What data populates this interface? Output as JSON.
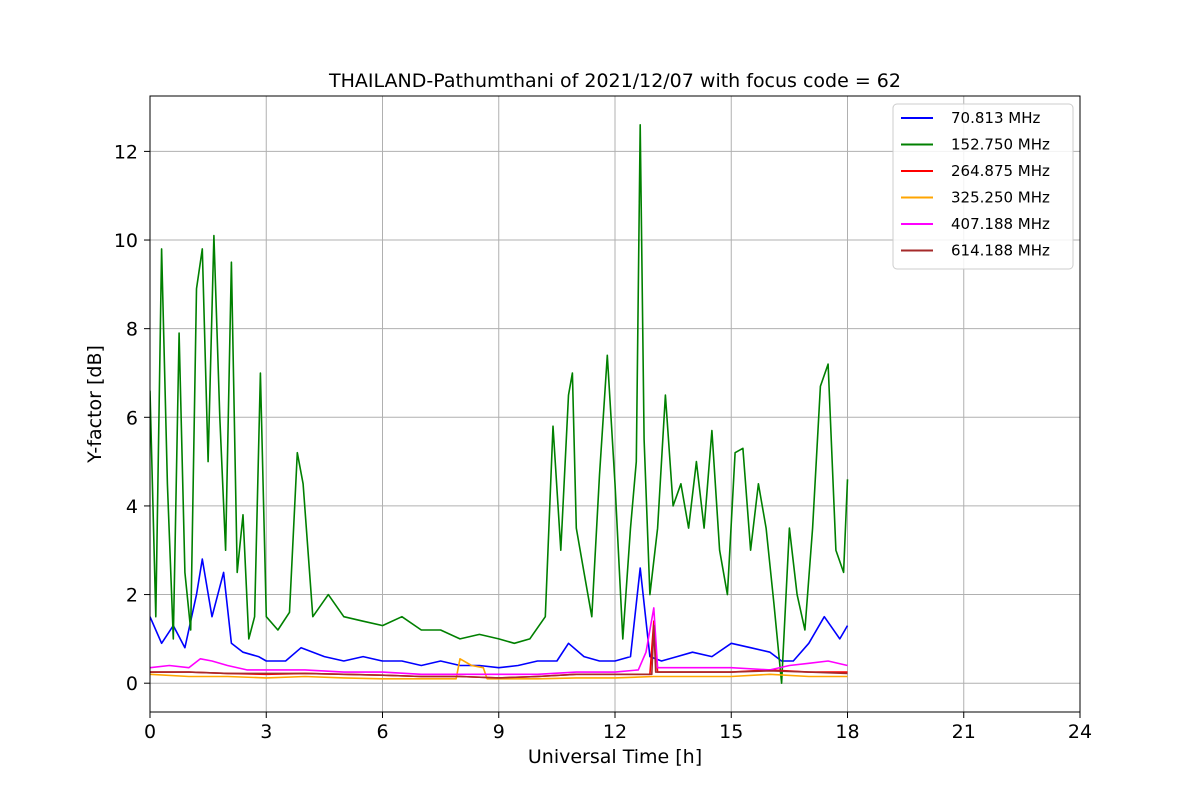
{
  "chart_data": {
    "type": "line",
    "title": "THAILAND-Pathumthani of 2021/12/07 with focus code = 62",
    "xlabel": "Universal Time [h]",
    "ylabel": "Y-factor [dB]",
    "xlim": [
      0,
      24
    ],
    "ylim": [
      -0.65,
      13.25
    ],
    "xticks": [
      0,
      3,
      6,
      9,
      12,
      15,
      18,
      21,
      24
    ],
    "yticks": [
      0,
      2,
      4,
      6,
      8,
      10,
      12
    ],
    "grid": true,
    "legend_position": "top-right",
    "series": [
      {
        "name": " 70.813 MHz",
        "color": "#0000ff",
        "x": [
          0,
          0.3,
          0.6,
          0.9,
          1.2,
          1.35,
          1.6,
          1.9,
          2.1,
          2.4,
          2.8,
          3.0,
          3.5,
          3.9,
          4.5,
          5.0,
          5.5,
          6.0,
          6.5,
          7.0,
          7.5,
          8.0,
          8.5,
          9.0,
          9.5,
          10.0,
          10.5,
          10.8,
          11.2,
          11.6,
          12.0,
          12.4,
          12.65,
          12.9,
          13.2,
          13.6,
          14.0,
          14.5,
          15.0,
          15.5,
          16.0,
          16.3,
          16.6,
          17.0,
          17.4,
          17.8,
          18.0
        ],
        "y": [
          1.5,
          0.9,
          1.3,
          0.8,
          2.0,
          2.8,
          1.5,
          2.5,
          0.9,
          0.7,
          0.6,
          0.5,
          0.5,
          0.8,
          0.6,
          0.5,
          0.6,
          0.5,
          0.5,
          0.4,
          0.5,
          0.4,
          0.4,
          0.35,
          0.4,
          0.5,
          0.5,
          0.9,
          0.6,
          0.5,
          0.5,
          0.6,
          2.6,
          0.6,
          0.5,
          0.6,
          0.7,
          0.6,
          0.9,
          0.8,
          0.7,
          0.5,
          0.5,
          0.9,
          1.5,
          1.0,
          1.3
        ]
      },
      {
        "name": "152.750 MHz",
        "color": "#008000",
        "x": [
          0,
          0.15,
          0.3,
          0.45,
          0.6,
          0.75,
          0.9,
          1.05,
          1.2,
          1.35,
          1.5,
          1.65,
          1.8,
          1.95,
          2.1,
          2.25,
          2.4,
          2.55,
          2.7,
          2.85,
          3.0,
          3.3,
          3.6,
          3.8,
          3.95,
          4.2,
          4.6,
          5.0,
          5.5,
          6.0,
          6.5,
          7.0,
          7.5,
          8.0,
          8.5,
          9.0,
          9.4,
          9.8,
          10.2,
          10.4,
          10.6,
          10.8,
          10.9,
          11.0,
          11.2,
          11.4,
          11.6,
          11.8,
          12.0,
          12.2,
          12.4,
          12.55,
          12.65,
          12.75,
          12.9,
          13.1,
          13.3,
          13.5,
          13.7,
          13.9,
          14.1,
          14.3,
          14.5,
          14.7,
          14.9,
          15.1,
          15.3,
          15.5,
          15.7,
          15.9,
          16.1,
          16.3,
          16.5,
          16.7,
          16.9,
          17.1,
          17.3,
          17.5,
          17.7,
          17.9,
          18.0
        ],
        "y": [
          6.6,
          1.5,
          9.8,
          4.5,
          1.0,
          7.9,
          2.5,
          1.2,
          8.9,
          9.8,
          5.0,
          10.1,
          6.0,
          3.0,
          9.5,
          2.5,
          3.8,
          1.0,
          1.5,
          7.0,
          1.5,
          1.2,
          1.6,
          5.2,
          4.5,
          1.5,
          2.0,
          1.5,
          1.4,
          1.3,
          1.5,
          1.2,
          1.2,
          1.0,
          1.1,
          1.0,
          0.9,
          1.0,
          1.5,
          5.8,
          3.0,
          6.5,
          7.0,
          3.5,
          2.5,
          1.5,
          4.7,
          7.4,
          4.5,
          1.0,
          3.5,
          5.0,
          12.6,
          5.5,
          2.0,
          3.5,
          6.5,
          4.0,
          4.5,
          3.5,
          5.0,
          3.5,
          5.7,
          3.0,
          2.0,
          5.2,
          5.3,
          3.0,
          4.5,
          3.5,
          1.8,
          0.0,
          3.5,
          2.0,
          1.2,
          3.5,
          6.7,
          7.2,
          3.0,
          2.5,
          4.6
        ]
      },
      {
        "name": "264.875 MHz",
        "color": "#ff0000",
        "x": [
          0,
          1.0,
          2.0,
          3.0,
          4.0,
          5.0,
          6.0,
          7.0,
          8.0,
          9.0,
          10.0,
          11.0,
          12.0,
          12.9,
          13.0,
          13.1,
          14.0,
          15.0,
          16.0,
          17.0,
          18.0
        ],
        "y": [
          0.25,
          0.25,
          0.22,
          0.2,
          0.22,
          0.2,
          0.18,
          0.15,
          0.15,
          0.12,
          0.15,
          0.2,
          0.2,
          0.2,
          1.4,
          0.25,
          0.25,
          0.25,
          0.3,
          0.25,
          0.25
        ]
      },
      {
        "name": "325.250 MHz",
        "color": "#ffa500",
        "x": [
          0,
          1.0,
          2.0,
          3.0,
          4.0,
          5.0,
          6.0,
          7.0,
          7.9,
          8.0,
          8.3,
          8.6,
          8.7,
          9.0,
          10.0,
          11.0,
          12.0,
          13.0,
          14.0,
          15.0,
          16.0,
          17.0,
          18.0
        ],
        "y": [
          0.2,
          0.15,
          0.15,
          0.12,
          0.15,
          0.12,
          0.1,
          0.1,
          0.1,
          0.55,
          0.4,
          0.35,
          0.1,
          0.1,
          0.1,
          0.12,
          0.12,
          0.15,
          0.15,
          0.15,
          0.2,
          0.15,
          0.15
        ]
      },
      {
        "name": "407.188 MHz",
        "color": "#ff00ff",
        "x": [
          0,
          0.5,
          1.0,
          1.3,
          1.6,
          2.0,
          2.5,
          3.0,
          4.0,
          5.0,
          6.0,
          7.0,
          8.0,
          9.0,
          10.0,
          11.0,
          12.0,
          12.6,
          12.8,
          13.0,
          13.1,
          14.0,
          15.0,
          16.0,
          16.5,
          17.0,
          17.5,
          18.0
        ],
        "y": [
          0.35,
          0.4,
          0.35,
          0.55,
          0.5,
          0.4,
          0.3,
          0.3,
          0.3,
          0.25,
          0.25,
          0.2,
          0.2,
          0.2,
          0.2,
          0.25,
          0.25,
          0.3,
          0.7,
          1.7,
          0.35,
          0.35,
          0.35,
          0.3,
          0.4,
          0.45,
          0.5,
          0.4
        ]
      },
      {
        "name": "614.188 MHz",
        "color": "#a52a2a",
        "x": [
          0,
          1.0,
          2.0,
          3.0,
          4.0,
          5.0,
          6.0,
          7.0,
          8.0,
          9.0,
          10.0,
          11.0,
          12.0,
          12.95,
          13.0,
          13.05,
          14.0,
          15.0,
          16.0,
          17.0,
          18.0
        ],
        "y": [
          0.25,
          0.25,
          0.22,
          0.22,
          0.22,
          0.2,
          0.18,
          0.15,
          0.15,
          0.12,
          0.15,
          0.2,
          0.2,
          0.2,
          1.3,
          0.25,
          0.25,
          0.25,
          0.28,
          0.25,
          0.22
        ]
      }
    ]
  }
}
